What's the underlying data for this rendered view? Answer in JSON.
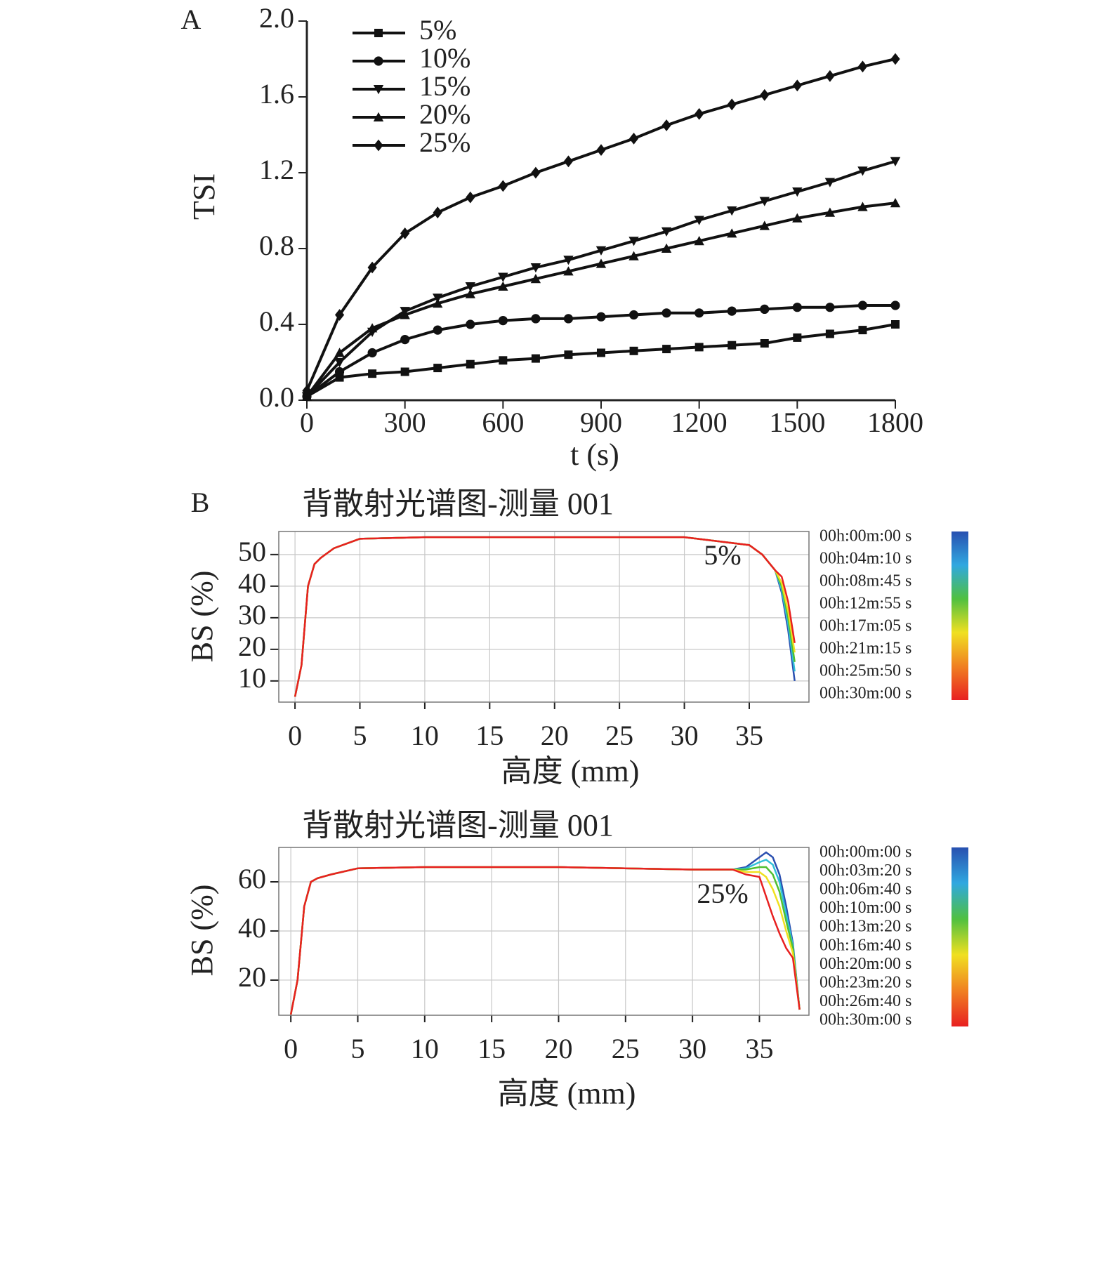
{
  "chart_data": [
    {
      "type": "line",
      "panel_label": "A",
      "x_label": "t (s)",
      "y_label": "TSI",
      "x": [
        0,
        100,
        200,
        300,
        400,
        500,
        600,
        700,
        800,
        900,
        1000,
        1100,
        1200,
        1300,
        1400,
        1500,
        1600,
        1700,
        1800
      ],
      "xlim": [
        0,
        1800
      ],
      "xticks": [
        0,
        300,
        600,
        900,
        1200,
        1500,
        1800
      ],
      "ylim": [
        0,
        2
      ],
      "yticks": [
        {
          "value": 0,
          "label": "0.0"
        },
        0.4,
        0.8,
        1.2,
        1.6,
        {
          "value": 2,
          "label": "2.0"
        }
      ],
      "grid": false,
      "legend": "top-left",
      "series": [
        {
          "name": "5%",
          "color": "#111111",
          "marker": "square",
          "values": [
            0.02,
            0.12,
            0.14,
            0.15,
            0.17,
            0.19,
            0.21,
            0.22,
            0.24,
            0.25,
            0.26,
            0.27,
            0.28,
            0.29,
            0.3,
            0.33,
            0.35,
            0.37,
            0.4
          ]
        },
        {
          "name": "10%",
          "color": "#111111",
          "marker": "circle",
          "values": [
            0.02,
            0.15,
            0.25,
            0.32,
            0.37,
            0.4,
            0.42,
            0.43,
            0.43,
            0.44,
            0.45,
            0.46,
            0.46,
            0.47,
            0.48,
            0.49,
            0.49,
            0.5,
            0.5
          ]
        },
        {
          "name": "15%",
          "color": "#111111",
          "marker": "triangle-down",
          "values": [
            0.02,
            0.2,
            0.36,
            0.47,
            0.54,
            0.6,
            0.65,
            0.7,
            0.74,
            0.79,
            0.84,
            0.89,
            0.95,
            1.0,
            1.05,
            1.1,
            1.15,
            1.21,
            1.26
          ]
        },
        {
          "name": "20%",
          "color": "#111111",
          "marker": "triangle-up",
          "values": [
            0.02,
            0.25,
            0.38,
            0.45,
            0.51,
            0.56,
            0.6,
            0.64,
            0.68,
            0.72,
            0.76,
            0.8,
            0.84,
            0.88,
            0.92,
            0.96,
            0.99,
            1.02,
            1.04
          ]
        },
        {
          "name": "25%",
          "color": "#111111",
          "marker": "diamond",
          "values": [
            0.05,
            0.45,
            0.7,
            0.88,
            0.99,
            1.07,
            1.13,
            1.2,
            1.26,
            1.32,
            1.38,
            1.45,
            1.51,
            1.56,
            1.61,
            1.66,
            1.71,
            1.76,
            1.8
          ]
        }
      ]
    },
    {
      "type": "line",
      "panel_label": "B",
      "title": "背散射光谱图-测量 001",
      "annotation": "5%",
      "x_label": "高度 (mm)",
      "y_label": "BS (%)",
      "x": [
        0,
        0.5,
        1,
        1.5,
        2,
        3,
        5,
        10,
        20,
        30,
        35,
        36,
        37,
        37.5,
        38,
        38.5
      ],
      "xlim": [
        -1.25,
        39.6
      ],
      "xticks": [
        0,
        5,
        10,
        15,
        20,
        25,
        30,
        35
      ],
      "ylim": [
        3.3,
        57.3
      ],
      "yticks": [
        10,
        20,
        30,
        40,
        50
      ],
      "grid": true,
      "series": [
        {
          "color": "#2a4fb0",
          "values": [
            5,
            15,
            40,
            47,
            49,
            52,
            55,
            55.5,
            55.5,
            55.5,
            53,
            50,
            45,
            38,
            26,
            10
          ]
        },
        {
          "color": "#30c0d8",
          "values": [
            5,
            15,
            40,
            47,
            49,
            52,
            55,
            55.5,
            55.5,
            55.5,
            53,
            50,
            45,
            39,
            28,
            13
          ]
        },
        {
          "color": "#50c030",
          "values": [
            5,
            15,
            40,
            47,
            49,
            52,
            55,
            55.5,
            55.5,
            55.5,
            53,
            50,
            45,
            40,
            30,
            16
          ]
        },
        {
          "color": "#f0e020",
          "values": [
            5,
            15,
            40,
            47,
            49,
            52,
            55,
            55.5,
            55.5,
            55.5,
            53,
            50,
            45,
            41,
            32,
            19
          ]
        },
        {
          "color": "#e82020",
          "values": [
            5,
            15,
            40,
            47,
            49,
            52,
            55,
            55.5,
            55.5,
            55.5,
            53,
            50,
            45,
            43,
            35,
            22
          ]
        }
      ],
      "colorbar": {
        "colors": [
          "#2850b0",
          "#30a8e0",
          "#50c040",
          "#f0e020",
          "#f08020",
          "#e82020"
        ],
        "labels": [
          "00h:00m:00 s",
          "00h:04m:10 s",
          "00h:08m:45 s",
          "00h:12m:55 s",
          "00h:17m:05 s",
          "00h:21m:15 s",
          "00h:25m:50 s",
          "00h:30m:00 s"
        ]
      }
    },
    {
      "type": "line",
      "title": "背散射光谱图-测量 001",
      "annotation": "25%",
      "x_label": "高度 (mm)",
      "y_label": "BS (%)",
      "x": [
        0,
        0.5,
        1,
        1.5,
        2,
        3,
        5,
        10,
        20,
        30,
        33,
        34,
        35,
        35.5,
        36,
        36.5,
        37,
        37.5,
        38
      ],
      "xlim": [
        -0.9,
        38.7
      ],
      "xticks": [
        0,
        5,
        10,
        15,
        20,
        25,
        30,
        35
      ],
      "ylim": [
        5.7,
        74
      ],
      "yticks": [
        20,
        40,
        60
      ],
      "grid": true,
      "series": [
        {
          "color": "#2a4fb0",
          "values": [
            6,
            20,
            50,
            60,
            61.5,
            63,
            65.5,
            66,
            66,
            65,
            65,
            66,
            70,
            72,
            70,
            63,
            50,
            35,
            8
          ]
        },
        {
          "color": "#30c0d8",
          "values": [
            6,
            20,
            50,
            60,
            61.5,
            63,
            65.5,
            66,
            66,
            65,
            65,
            65.5,
            68,
            69,
            67,
            60,
            47,
            34,
            8
          ]
        },
        {
          "color": "#50c030",
          "values": [
            6,
            20,
            50,
            60,
            61.5,
            63,
            65.5,
            66,
            66,
            65,
            65,
            65,
            66,
            66,
            63,
            56,
            44,
            33,
            8
          ]
        },
        {
          "color": "#f0e020",
          "values": [
            6,
            20,
            50,
            60,
            61.5,
            63,
            65.5,
            66,
            66,
            65,
            65,
            64,
            64,
            62,
            57,
            50,
            40,
            31,
            8
          ]
        },
        {
          "color": "#e82020",
          "values": [
            6,
            20,
            50,
            60,
            61.5,
            63,
            65.5,
            66,
            66,
            65,
            65,
            63,
            62,
            54,
            46,
            39,
            33,
            29,
            8
          ]
        }
      ],
      "colorbar": {
        "colors": [
          "#2850b0",
          "#30a8e0",
          "#50c040",
          "#f0e020",
          "#f08020",
          "#e82020"
        ],
        "labels": [
          "00h:00m:00 s",
          "00h:03m:20 s",
          "00h:06m:40 s",
          "00h:10m:00 s",
          "00h:13m:20 s",
          "00h:16m:40 s",
          "00h:20m:00 s",
          "00h:23m:20 s",
          "00h:26m:40 s",
          "00h:30m:00 s"
        ]
      }
    }
  ]
}
